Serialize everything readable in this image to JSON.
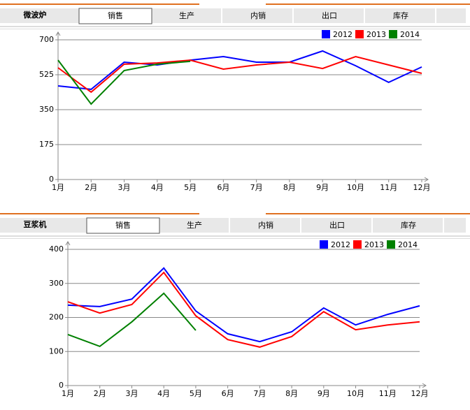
{
  "panels": [
    {
      "name": "微波炉",
      "tabs": [
        "销售",
        "生产",
        "内销",
        "出口",
        "库存"
      ]
    },
    {
      "name": "豆浆机",
      "tabs": [
        "销售",
        "生产",
        "内销",
        "出口",
        "库存"
      ]
    }
  ],
  "chart_data": [
    {
      "type": "line",
      "categories": [
        "1月",
        "2月",
        "3月",
        "4月",
        "5月",
        "6月",
        "7月",
        "8月",
        "9月",
        "10月",
        "11月",
        "12月"
      ],
      "series": [
        {
          "name": "2012",
          "color": "#0000ff",
          "values": [
            469,
            452,
            588,
            574,
            598,
            616,
            588,
            588,
            644,
            570,
            487,
            564
          ]
        },
        {
          "name": "2013",
          "color": "#ff0000",
          "values": [
            560,
            438,
            578,
            584,
            598,
            553,
            574,
            588,
            556,
            616,
            574,
            532
          ]
        },
        {
          "name": "2014",
          "color": "#008000",
          "values": [
            598,
            378,
            546,
            578,
            592,
            null,
            null,
            null,
            null,
            null,
            null,
            null
          ]
        }
      ],
      "ylim": [
        0,
        700
      ],
      "yticks": [
        0,
        175,
        350,
        525,
        700
      ],
      "grid": true,
      "legend": "top-right"
    },
    {
      "type": "line",
      "categories": [
        "1月",
        "2月",
        "3月",
        "4月",
        "5月",
        "6月",
        "7月",
        "8月",
        "9月",
        "10月",
        "11月",
        "12月"
      ],
      "series": [
        {
          "name": "2012",
          "color": "#0000ff",
          "values": [
            236,
            232,
            254,
            345,
            219,
            152,
            129,
            158,
            228,
            178,
            209,
            234
          ]
        },
        {
          "name": "2013",
          "color": "#ff0000",
          "values": [
            246,
            213,
            238,
            332,
            205,
            135,
            113,
            144,
            217,
            164,
            178,
            187
          ]
        },
        {
          "name": "2014",
          "color": "#008000",
          "values": [
            150,
            115,
            187,
            271,
            162,
            null,
            null,
            null,
            null,
            null,
            null,
            null
          ]
        }
      ],
      "ylim": [
        0,
        400
      ],
      "yticks": [
        0,
        100,
        200,
        300,
        400
      ],
      "grid": true,
      "legend": "top-right"
    }
  ]
}
